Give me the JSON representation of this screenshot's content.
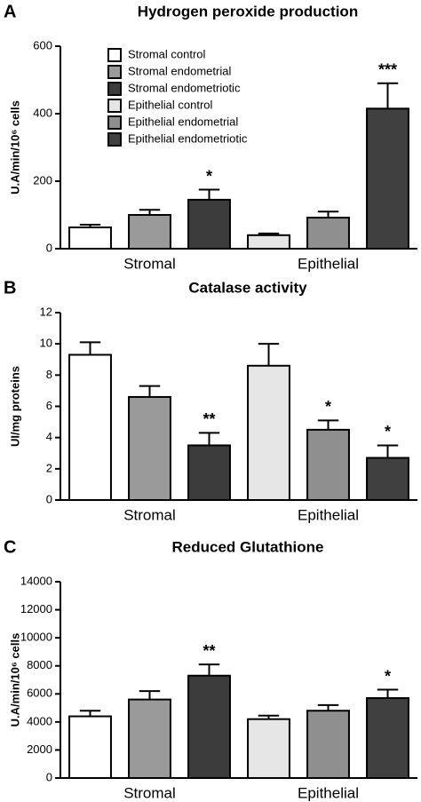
{
  "chart_data": [
    {
      "type": "bar",
      "panel_label": "A",
      "title": "Hydrogen peroxide production",
      "y_label": "U.A/min/10⁶ cells",
      "categories": [
        "Stromal",
        "Epithelial"
      ],
      "ylim": [
        0,
        600
      ],
      "yticks": [
        0,
        200,
        400,
        600
      ],
      "legend": true,
      "series": [
        {
          "name": "Stromal control",
          "color": "#ffffff",
          "values": [
            63,
            null
          ],
          "errors": [
            8,
            null
          ],
          "significance": [
            null,
            null
          ]
        },
        {
          "name": "Stromal endometrial",
          "color": "#9a9a9a",
          "values": [
            100,
            null
          ],
          "errors": [
            15,
            null
          ],
          "significance": [
            null,
            null
          ]
        },
        {
          "name": "Stromal endometriotic",
          "color": "#3c3c3c",
          "values": [
            145,
            null
          ],
          "errors": [
            30,
            null
          ],
          "significance": [
            "*",
            null
          ]
        },
        {
          "name": "Epithelial control",
          "color": "#e6e6e6",
          "values": [
            null,
            40
          ],
          "errors": [
            null,
            5
          ],
          "significance": [
            null,
            null
          ]
        },
        {
          "name": "Epithelial endometrial",
          "color": "#8f8f8f",
          "values": [
            null,
            92
          ],
          "errors": [
            null,
            18
          ],
          "significance": [
            null,
            null
          ]
        },
        {
          "name": "Epithelial endometriotic",
          "color": "#404040",
          "values": [
            null,
            415
          ],
          "errors": [
            null,
            75
          ],
          "significance": [
            null,
            "***"
          ]
        }
      ]
    },
    {
      "type": "bar",
      "panel_label": "B",
      "title": "Catalase activity",
      "y_label": "UI/mg proteins",
      "categories": [
        "Stromal",
        "Epithelial"
      ],
      "ylim": [
        0,
        12
      ],
      "yticks": [
        0,
        2,
        4,
        6,
        8,
        10,
        12
      ],
      "legend": false,
      "series": [
        {
          "color": "#ffffff",
          "values": [
            9.3,
            null
          ],
          "errors": [
            0.8,
            null
          ],
          "significance": [
            null,
            null
          ]
        },
        {
          "color": "#9a9a9a",
          "values": [
            6.6,
            null
          ],
          "errors": [
            0.7,
            null
          ],
          "significance": [
            null,
            null
          ]
        },
        {
          "color": "#3c3c3c",
          "values": [
            3.5,
            null
          ],
          "errors": [
            0.8,
            null
          ],
          "significance": [
            "**",
            null
          ]
        },
        {
          "color": "#e6e6e6",
          "values": [
            null,
            8.6
          ],
          "errors": [
            null,
            1.4
          ],
          "significance": [
            null,
            null
          ]
        },
        {
          "color": "#8f8f8f",
          "values": [
            null,
            4.5
          ],
          "errors": [
            null,
            0.6
          ],
          "significance": [
            null,
            "*"
          ]
        },
        {
          "color": "#404040",
          "values": [
            null,
            2.7
          ],
          "errors": [
            null,
            0.8
          ],
          "significance": [
            null,
            "*"
          ]
        }
      ]
    },
    {
      "type": "bar",
      "panel_label": "C",
      "title": "Reduced Glutathione",
      "y_label": "U.A/min/10⁶ cells",
      "categories": [
        "Stromal",
        "Epithelial"
      ],
      "ylim": [
        0,
        14000
      ],
      "yticks": [
        0,
        2000,
        4000,
        6000,
        8000,
        10000,
        12000,
        14000
      ],
      "legend": false,
      "series": [
        {
          "color": "#ffffff",
          "values": [
            4400,
            null
          ],
          "errors": [
            400,
            null
          ],
          "significance": [
            null,
            null
          ]
        },
        {
          "color": "#9a9a9a",
          "values": [
            5600,
            null
          ],
          "errors": [
            600,
            null
          ],
          "significance": [
            null,
            null
          ]
        },
        {
          "color": "#3c3c3c",
          "values": [
            7300,
            null
          ],
          "errors": [
            800,
            null
          ],
          "significance": [
            "**",
            null
          ]
        },
        {
          "color": "#e6e6e6",
          "values": [
            null,
            4200
          ],
          "errors": [
            null,
            250
          ],
          "significance": [
            null,
            null
          ]
        },
        {
          "color": "#8f8f8f",
          "values": [
            null,
            4800
          ],
          "errors": [
            null,
            400
          ],
          "significance": [
            null,
            null
          ]
        },
        {
          "color": "#404040",
          "values": [
            null,
            5700
          ],
          "errors": [
            null,
            600
          ],
          "significance": [
            null,
            "*"
          ]
        }
      ]
    }
  ]
}
